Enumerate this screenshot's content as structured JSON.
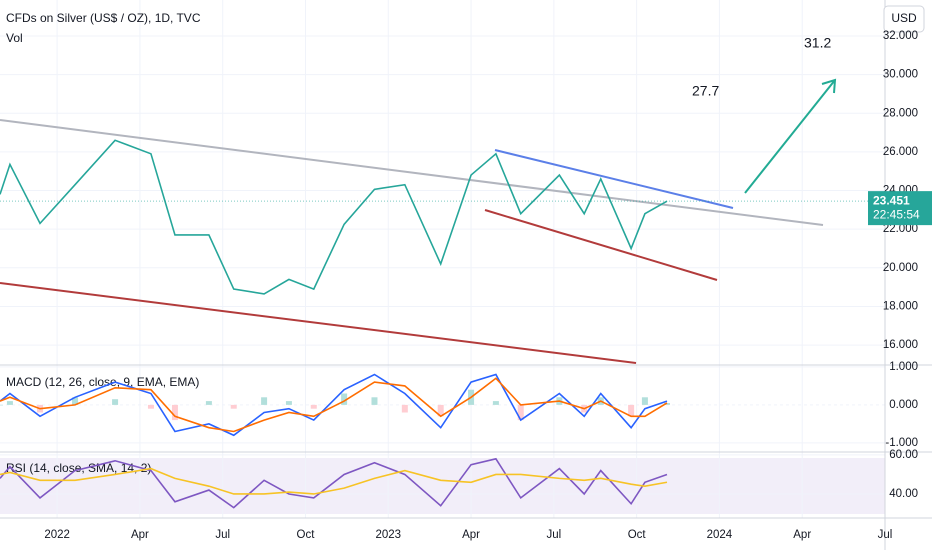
{
  "chart_data": [
    {
      "type": "line",
      "title": "CFDs on Silver (US$ / OZ), 1D, TVC",
      "subtitle": "Vol",
      "currency": "USD",
      "x": [
        -2.07,
        -1.71,
        -0.62,
        0.65,
        2.1,
        3.4,
        4.27,
        5.5,
        6.4,
        7.5,
        8.4,
        9.3,
        10.4,
        11.5,
        12.6,
        13.9,
        15,
        15.9,
        16.8,
        18.2,
        19.1,
        19.7,
        20.8,
        21.3,
        22.1
      ],
      "values": [
        23.8,
        25.35,
        22.3,
        24.3,
        26.6,
        25.9,
        21.7,
        21.7,
        18.9,
        18.65,
        19.4,
        18.9,
        22.25,
        24.06,
        24.3,
        20.2,
        24.8,
        25.9,
        22.8,
        24.8,
        22.8,
        24.6,
        21.0,
        22.8,
        23.45
      ],
      "color": "#26a69a",
      "xlim": [
        -2.07,
        30
      ],
      "xticks": [
        {
          "value": 0,
          "label": "2022"
        },
        {
          "value": 3,
          "label": "Apr"
        },
        {
          "value": 6,
          "label": "Jul"
        },
        {
          "value": 9,
          "label": "Oct"
        },
        {
          "value": 12,
          "label": "2023"
        },
        {
          "value": 15,
          "label": "Apr"
        },
        {
          "value": 18,
          "label": "Jul"
        },
        {
          "value": 21,
          "label": "Oct"
        },
        {
          "value": 24,
          "label": "2024"
        },
        {
          "value": 27,
          "label": "Apr"
        },
        {
          "value": 30,
          "label": "Jul"
        }
      ],
      "ylim": [
        14.97,
        33.86
      ],
      "yticks": [
        {
          "value": 16,
          "label": "16.000"
        },
        {
          "value": 18,
          "label": "18.000"
        },
        {
          "value": 20,
          "label": "20.000"
        },
        {
          "value": 22,
          "label": "22.000"
        },
        {
          "value": 24,
          "label": "24.000"
        },
        {
          "value": 26,
          "label": "26.000"
        },
        {
          "value": 28,
          "label": "28.000"
        },
        {
          "value": 30,
          "label": "30.000"
        },
        {
          "value": 32,
          "label": "32.000"
        }
      ],
      "last_price": 23.451,
      "countdown": "22:45:54",
      "targets": [
        27.7,
        31.2
      ],
      "grid": true
    },
    {
      "type": "macd",
      "title": "MACD (12, 26, close, 9, EMA, EMA)",
      "series": [
        {
          "color": "#2962ff",
          "values": [
            0.1,
            0.3,
            -0.3,
            0.2,
            0.6,
            0.3,
            -0.7,
            -0.5,
            -0.8,
            -0.2,
            -0.1,
            -0.4,
            0.4,
            0.8,
            0.3,
            -0.6,
            0.6,
            0.8,
            -0.4,
            0.3,
            -0.3,
            0.3,
            -0.6,
            -0.1,
            0.1
          ]
        },
        {
          "color": "#ff6d00",
          "values": [
            0.1,
            0.2,
            -0.1,
            0,
            0.45,
            0.4,
            -0.3,
            -0.6,
            -0.7,
            -0.4,
            -0.2,
            -0.3,
            0.1,
            0.6,
            0.5,
            -0.3,
            0.2,
            0.7,
            0,
            0.1,
            -0.1,
            0.1,
            -0.3,
            -0.3,
            0.05
          ]
        }
      ],
      "histogram": {
        "up_color": "#b2dfdb",
        "down_color": "#ffcdd2",
        "values": [
          0,
          0.1,
          -0.2,
          0.2,
          0.15,
          -0.1,
          -0.4,
          0.1,
          -0.1,
          0.2,
          0.1,
          -0.1,
          0.3,
          0.2,
          -0.2,
          -0.3,
          0.4,
          0.1,
          -0.4,
          0.2,
          -0.2,
          0.2,
          -0.3,
          0.2,
          0.05
        ]
      },
      "ylim": [
        -1.24,
        1.05
      ],
      "yticks": [
        {
          "value": -1,
          "label": "-1.000"
        },
        {
          "value": 0,
          "label": "0.000"
        },
        {
          "value": 1,
          "label": "1.000"
        }
      ]
    },
    {
      "type": "rsi",
      "title": "RSI (14, close, SMA, 14, 2)",
      "series": [
        {
          "color": "#7e57c2",
          "values": [
            48,
            54,
            38,
            52,
            57,
            52,
            36,
            42,
            33,
            47,
            40,
            38,
            50,
            56,
            50,
            34,
            55,
            58,
            38,
            53,
            40,
            52,
            35,
            46,
            50
          ]
        },
        {
          "color": "#f7c325",
          "values": [
            50,
            51,
            47,
            47,
            50,
            53,
            48,
            44,
            40,
            40,
            41,
            40,
            43,
            48,
            52,
            47,
            46,
            50,
            50,
            48,
            47,
            48,
            45,
            44,
            46
          ]
        }
      ],
      "ylim": [
        27.7,
        61.5
      ],
      "yticks": [
        {
          "value": 40,
          "label": "40.00"
        },
        {
          "value": 60,
          "label": "60.00"
        }
      ]
    }
  ]
}
